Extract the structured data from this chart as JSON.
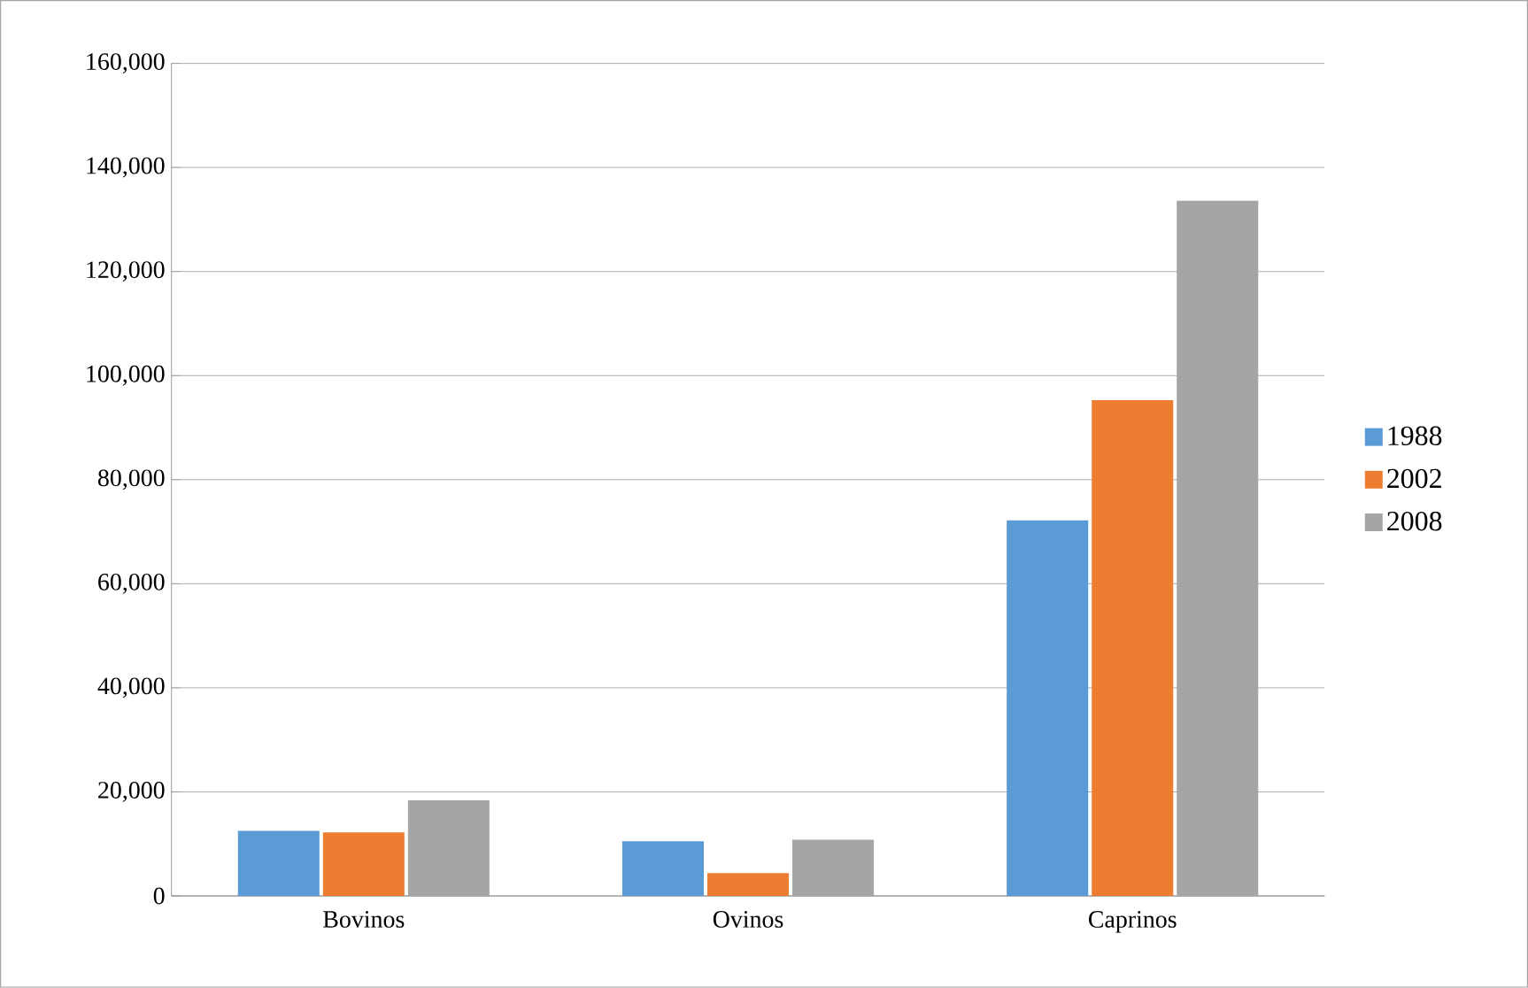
{
  "chart_data": {
    "type": "bar",
    "categories": [
      "Bovinos",
      "Ovinos",
      "Caprinos"
    ],
    "series": [
      {
        "name": "1988",
        "color": "#5b9bd5",
        "values": [
          12500,
          10500,
          72200
        ]
      },
      {
        "name": "2002",
        "color": "#ed7d31",
        "values": [
          12200,
          4400,
          95300
        ]
      },
      {
        "name": "2008",
        "color": "#a5a5a5",
        "values": [
          18400,
          10800,
          133600
        ]
      }
    ],
    "ylim": [
      0,
      160000
    ],
    "yticks": [
      {
        "value": 0,
        "label": "0"
      },
      {
        "value": 20000,
        "label": "20,000"
      },
      {
        "value": 40000,
        "label": "40,000"
      },
      {
        "value": 60000,
        "label": "60,000"
      },
      {
        "value": 80000,
        "label": "80,000"
      },
      {
        "value": 100000,
        "label": "100,000"
      },
      {
        "value": 120000,
        "label": "120,000"
      },
      {
        "value": 140000,
        "label": "140,000"
      },
      {
        "value": 160000,
        "label": "160,000"
      }
    ],
    "grid": "y",
    "legend": "right"
  }
}
